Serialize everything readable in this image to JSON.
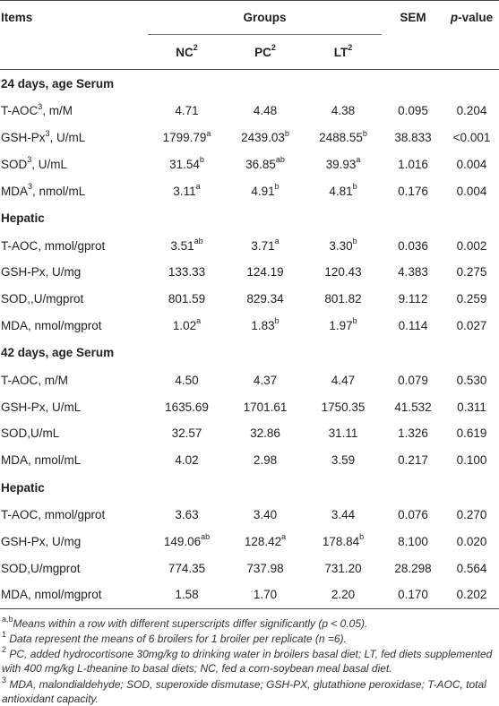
{
  "header": {
    "items": "Items",
    "groups": "Groups",
    "sem": "SEM",
    "p_italic": "p",
    "p_rest": "-value",
    "cols": [
      {
        "name": "NC",
        "sup": "2"
      },
      {
        "name": "PC",
        "sup": "2"
      },
      {
        "name": "LT",
        "sup": "2"
      }
    ]
  },
  "sections": [
    {
      "title": "24 days, age Serum",
      "rows": [
        {
          "label": "T-AOC",
          "lsup": "3",
          "lrest": ", m/M",
          "nc": "4.71",
          "nc_s": "",
          "pc": "4.48",
          "pc_s": "",
          "lt": "4.38",
          "lt_s": "",
          "sem": "0.095",
          "p": "0.204"
        },
        {
          "label": "GSH-Px",
          "lsup": "3",
          "lrest": ", U/mL",
          "nc": "1799.79",
          "nc_s": "a",
          "pc": "2439.03",
          "pc_s": "b",
          "lt": "2488.55",
          "lt_s": "b",
          "sem": "38.833",
          "p": "<0.001"
        },
        {
          "label": "SOD",
          "lsup": "3",
          "lrest": ", U/mL",
          "nc": "31.54",
          "nc_s": "b",
          "pc": "36.85",
          "pc_s": "ab",
          "lt": "39.93",
          "lt_s": "a",
          "sem": "1.016",
          "p": "0.004"
        },
        {
          "label": "MDA",
          "lsup": "3",
          "lrest": ", nmol/mL",
          "nc": "3.11",
          "nc_s": "a",
          "pc": "4.91",
          "pc_s": "b",
          "lt": "4.81",
          "lt_s": "b",
          "sem": "0.176",
          "p": "0.004"
        }
      ]
    },
    {
      "title": "Hepatic",
      "rows": [
        {
          "label": "T-AOC, mmol/gprot",
          "lsup": "",
          "lrest": "",
          "nc": "3.51",
          "nc_s": "ab",
          "pc": "3.71",
          "pc_s": "a",
          "lt": "3.30",
          "lt_s": "b",
          "sem": "0.036",
          "p": "0.002"
        },
        {
          "label": "GSH-Px, U/mg",
          "lsup": "",
          "lrest": "",
          "nc": "133.33",
          "nc_s": "",
          "pc": "124.19",
          "pc_s": "",
          "lt": "120.43",
          "lt_s": "",
          "sem": "4.383",
          "p": "0.275"
        },
        {
          "label": "SOD,,U/mgprot",
          "lsup": "",
          "lrest": "",
          "nc": "801.59",
          "nc_s": "",
          "pc": "829.34",
          "pc_s": "",
          "lt": "801.82",
          "lt_s": "",
          "sem": "9.112",
          "p": "0.259"
        },
        {
          "label": "MDA, nmol/mgprot",
          "lsup": "",
          "lrest": "",
          "nc": "1.02",
          "nc_s": "a",
          "pc": "1.83",
          "pc_s": "b",
          "lt": "1.97",
          "lt_s": "b",
          "sem": "0.114",
          "p": "0.027"
        }
      ]
    },
    {
      "title": "42 days, age Serum",
      "rows": [
        {
          "label": "T-AOC, m/M",
          "lsup": "",
          "lrest": "",
          "nc": "4.50",
          "nc_s": "",
          "pc": "4.37",
          "pc_s": "",
          "lt": "4.47",
          "lt_s": "",
          "sem": "0.079",
          "p": "0.530"
        },
        {
          "label": "GSH-Px, U/mL",
          "lsup": "",
          "lrest": "",
          "nc": "1635.69",
          "nc_s": "",
          "pc": "1701.61",
          "pc_s": "",
          "lt": "1750.35",
          "lt_s": "",
          "sem": "41.532",
          "p": "0.311"
        },
        {
          "label": "SOD,U/mL",
          "lsup": "",
          "lrest": "",
          "nc": "32.57",
          "nc_s": "",
          "pc": "32.86",
          "pc_s": "",
          "lt": "31.11",
          "lt_s": "",
          "sem": "1.326",
          "p": "0.619"
        },
        {
          "label": "MDA, nmol/mL",
          "lsup": "",
          "lrest": "",
          "nc": "4.02",
          "nc_s": "",
          "pc": "2.98",
          "pc_s": "",
          "lt": "3.59",
          "lt_s": "",
          "sem": "0.217",
          "p": "0.100"
        }
      ]
    },
    {
      "title": "Hepatic",
      "rows": [
        {
          "label": "T-AOC, mmol/gprot",
          "lsup": "",
          "lrest": "",
          "nc": "3.63",
          "nc_s": "",
          "pc": "3.40",
          "pc_s": "",
          "lt": "3.44",
          "lt_s": "",
          "sem": "0.076",
          "p": "0.270"
        },
        {
          "label": "GSH-Px, U/mg",
          "lsup": "",
          "lrest": "",
          "nc": "149.06",
          "nc_s": "ab",
          "pc": "128.42",
          "pc_s": "a",
          "lt": "178.84",
          "lt_s": "b",
          "sem": "8.100",
          "p": "0.020"
        },
        {
          "label": "SOD,U/mgprot",
          "lsup": "",
          "lrest": "",
          "nc": "774.35",
          "nc_s": "",
          "pc": "737.98",
          "pc_s": "",
          "lt": "731.20",
          "lt_s": "",
          "sem": "28.298",
          "p": "0.564"
        },
        {
          "label": "MDA, nmol/mgprot",
          "lsup": "",
          "lrest": "",
          "nc": "1.58",
          "nc_s": "",
          "pc": "1.70",
          "pc_s": "",
          "lt": "2.20",
          "lt_s": "",
          "sem": "0.170",
          "p": "0.202"
        }
      ]
    }
  ],
  "notes": [
    {
      "sup": "a,b",
      "text": "Means within a row with different superscripts differ significantly (p < 0.05)."
    },
    {
      "sup": "1",
      "text": " Data represent the means of 6 broilers for 1 broiler per replicate (n =6)."
    },
    {
      "sup": "2",
      "text": " PC, added hydrocortisone 30mg/kg to drinking water in broilers basal diet; LT, fed diets supplemented with 400 mg/kg L-theanine to basal diets; NC, fed a corn-soybean meal basal diet."
    },
    {
      "sup": "3",
      "text": " MDA, malondialdehyde; SOD, superoxide dismutase; GSH-PX, glutathione peroxidase; T-AOC, total antioxidant capacity."
    }
  ]
}
